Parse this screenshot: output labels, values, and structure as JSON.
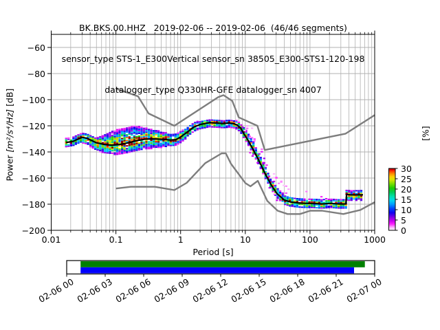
{
  "header": {
    "line1": "BK.BKS.00.HHZ   2019-02-06 -- 2019-02-06  (46/46 segments)",
    "line2": "sensor_type STS-1_E300Vertical sensor_sn 38505_E300-STS1-120-198",
    "line3": "datalogger_type Q330HR-GFE datalogger_sn 4007"
  },
  "chart_data": {
    "type": "heatmap",
    "title": "BK.BKS.00.HHZ   2019-02-06 -- 2019-02-06  (46/46 segments)",
    "xlabel": "Period [s]",
    "ylabel_parts": {
      "pre": "Power ",
      "mid": "[m²/s⁴/Hz]",
      "post": " [dB]"
    },
    "xscale": "log",
    "xlim": [
      0.01,
      1000
    ],
    "ylim": [
      -200,
      -50
    ],
    "grid": true,
    "xtick_labels": [
      "0.01",
      "0.1",
      "1",
      "10",
      "100",
      "1000"
    ],
    "xtick_values": [
      0.01,
      0.1,
      1,
      10,
      100,
      1000
    ],
    "ytick_labels": [
      "−60",
      "−80",
      "−100",
      "−120",
      "−140",
      "−160",
      "−180",
      "−200"
    ],
    "ytick_values": [
      -60,
      -80,
      -100,
      -120,
      -140,
      -160,
      -180,
      -200
    ],
    "colorbar": {
      "label": "[%]",
      "tick_values": [
        0,
        5,
        10,
        15,
        20,
        25,
        30
      ],
      "tick_labels": [
        "0",
        "5",
        "10",
        "15",
        "20",
        "25",
        "30"
      ],
      "vmin": 0,
      "vmax": 30,
      "cmap_stops": [
        [
          0,
          "#ffffff"
        ],
        [
          1.5,
          "#ffaaff"
        ],
        [
          3,
          "#ff22ff"
        ],
        [
          4.5,
          "#cc00f0"
        ],
        [
          6.5,
          "#7700e8"
        ],
        [
          8.5,
          "#1100ee"
        ],
        [
          10.5,
          "#0044ff"
        ],
        [
          12.5,
          "#0099ff"
        ],
        [
          14.5,
          "#00d8ee"
        ],
        [
          16.5,
          "#00e0a8"
        ],
        [
          18.5,
          "#00cc55"
        ],
        [
          20.5,
          "#1ecc00"
        ],
        [
          22.5,
          "#77dd00"
        ],
        [
          24.5,
          "#d8e800"
        ],
        [
          26,
          "#ffcc00"
        ],
        [
          27.5,
          "#ff8800"
        ],
        [
          28.7,
          "#ff3300"
        ],
        [
          29.5,
          "#dd0000"
        ],
        [
          30,
          "#8b0000"
        ]
      ]
    },
    "noise_models": {
      "nhnm": [
        [
          0.1,
          -91.5
        ],
        [
          0.22,
          -97.4
        ],
        [
          0.32,
          -110.5
        ],
        [
          0.8,
          -120.0
        ],
        [
          3.8,
          -98.1
        ],
        [
          4.6,
          -96.5
        ],
        [
          6.3,
          -101.0
        ],
        [
          7.9,
          -113.5
        ],
        [
          15.4,
          -120.0
        ],
        [
          20,
          -138.5
        ],
        [
          354.8,
          -126.0
        ],
        [
          1000,
          -111.8
        ]
      ],
      "nlnm": [
        [
          0.1,
          -168.0
        ],
        [
          0.17,
          -166.7
        ],
        [
          0.4,
          -166.7
        ],
        [
          0.8,
          -169.2
        ],
        [
          1.24,
          -163.7
        ],
        [
          2.4,
          -148.6
        ],
        [
          4.3,
          -141.1
        ],
        [
          5.0,
          -141.1
        ],
        [
          6.0,
          -149.0
        ],
        [
          10.0,
          -163.8
        ],
        [
          12.0,
          -166.3
        ],
        [
          15.6,
          -162.1
        ],
        [
          21.9,
          -177.5
        ],
        [
          31.6,
          -185.0
        ],
        [
          45,
          -187.5
        ],
        [
          70,
          -187.5
        ],
        [
          101,
          -185.0
        ],
        [
          154,
          -185.0
        ],
        [
          328,
          -187.5
        ],
        [
          600,
          -184.4
        ],
        [
          1000,
          -178.5
        ]
      ]
    },
    "histogram_band": {
      "segments": [
        {
          "periods": [
            0.017,
            0.022,
            0.03,
            0.036,
            0.05,
            0.065,
            0.085,
            0.11,
            0.15,
            0.2,
            0.28,
            0.4,
            0.55,
            0.7,
            0.85,
            1.0,
            1.25,
            1.6,
            2.0,
            2.8,
            3.6,
            4.6,
            5.5,
            6.5,
            7.5,
            8.5,
            9.5,
            11,
            13,
            16,
            20,
            25,
            31,
            40,
            50,
            65,
            85,
            110,
            150,
            210,
            280,
            360
          ],
          "mode": [
            -132.8,
            -131.8,
            -128.8,
            -129.6,
            -133.0,
            -134.2,
            -134.8,
            -134.4,
            -133.2,
            -131.6,
            -130.2,
            -130.0,
            -130.4,
            -130.9,
            -130.6,
            -128.6,
            -125.0,
            -121.0,
            -119.0,
            -117.6,
            -117.9,
            -118.3,
            -117.9,
            -118.2,
            -119.4,
            -121.8,
            -126.0,
            -131.0,
            -137.5,
            -146.0,
            -156.0,
            -165.0,
            -172.0,
            -176.8,
            -178.3,
            -179.0,
            -179.3,
            -179.4,
            -179.8,
            -179.4,
            -179.8,
            -179.8
          ],
          "spread_up": [
            3.2,
            3.2,
            3.4,
            3.6,
            4.5,
            7.5,
            10.5,
            12.0,
            12.5,
            11.5,
            9.0,
            7.0,
            5.5,
            5.0,
            4.6,
            4.4,
            4.0,
            3.6,
            3.2,
            3.0,
            3.0,
            3.0,
            3.0,
            3.0,
            3.4,
            4.0,
            5.0,
            6.0,
            6.5,
            6.0,
            5.5,
            5.0,
            4.5,
            4.2,
            4.0,
            4.0,
            4.0,
            4.0,
            4.0,
            4.0,
            4.0,
            4.0
          ],
          "spread_down": [
            3.4,
            3.8,
            4.2,
            5.0,
            6.0,
            6.8,
            7.2,
            7.6,
            8.0,
            8.4,
            8.0,
            7.0,
            6.0,
            5.2,
            4.8,
            4.5,
            4.2,
            3.8,
            3.5,
            3.5,
            3.5,
            3.5,
            3.5,
            3.5,
            3.5,
            3.5,
            3.5,
            3.5,
            3.5,
            3.5,
            3.5,
            3.5,
            3.5,
            3.8,
            4.0,
            4.0,
            4.0,
            4.0,
            4.0,
            4.0,
            4.0,
            4.0
          ]
        },
        {
          "periods": [
            368,
            420,
            500,
            600,
            660
          ],
          "mode": [
            -172.6,
            -172.8,
            -172.9,
            -172.8,
            -172.8
          ],
          "spread_up": [
            3.4,
            3.4,
            3.4,
            3.4,
            3.4
          ],
          "spread_down": [
            4.6,
            4.6,
            4.6,
            4.6,
            4.6
          ]
        }
      ],
      "outlier_regions": [
        {
          "p": [
            9,
            48
          ],
          "off": [
            3,
            15
          ],
          "density": 0.5,
          "trials": 3
        },
        {
          "p": [
            10,
            36
          ],
          "off": [
            -8,
            -3
          ],
          "density": 0.15,
          "trials": 2
        },
        {
          "p": [
            48,
            150
          ],
          "off": [
            3,
            9
          ],
          "density": 0.12,
          "trials": 2
        },
        {
          "p": [
            150,
            360
          ],
          "off": [
            3,
            6
          ],
          "density": 0.08,
          "trials": 2
        }
      ]
    },
    "colors": {
      "model_line": "#7d7d7d",
      "mode_line": "#000000",
      "grid": "#b0b0b0",
      "spine": "#000000"
    }
  },
  "timeline": {
    "tick_labels": [
      "02-06 00",
      "02-06 03",
      "02-06 06",
      "02-06 09",
      "02-06 12",
      "02-06 15",
      "02-06 18",
      "02-06 21",
      "02-07 00"
    ],
    "bars": [
      {
        "name": "coverage-top",
        "color": "#008000",
        "start": 0.045,
        "end": 0.968
      },
      {
        "name": "coverage-bottom",
        "color": "#0000ff",
        "start": 0.045,
        "end": 0.933
      }
    ]
  }
}
